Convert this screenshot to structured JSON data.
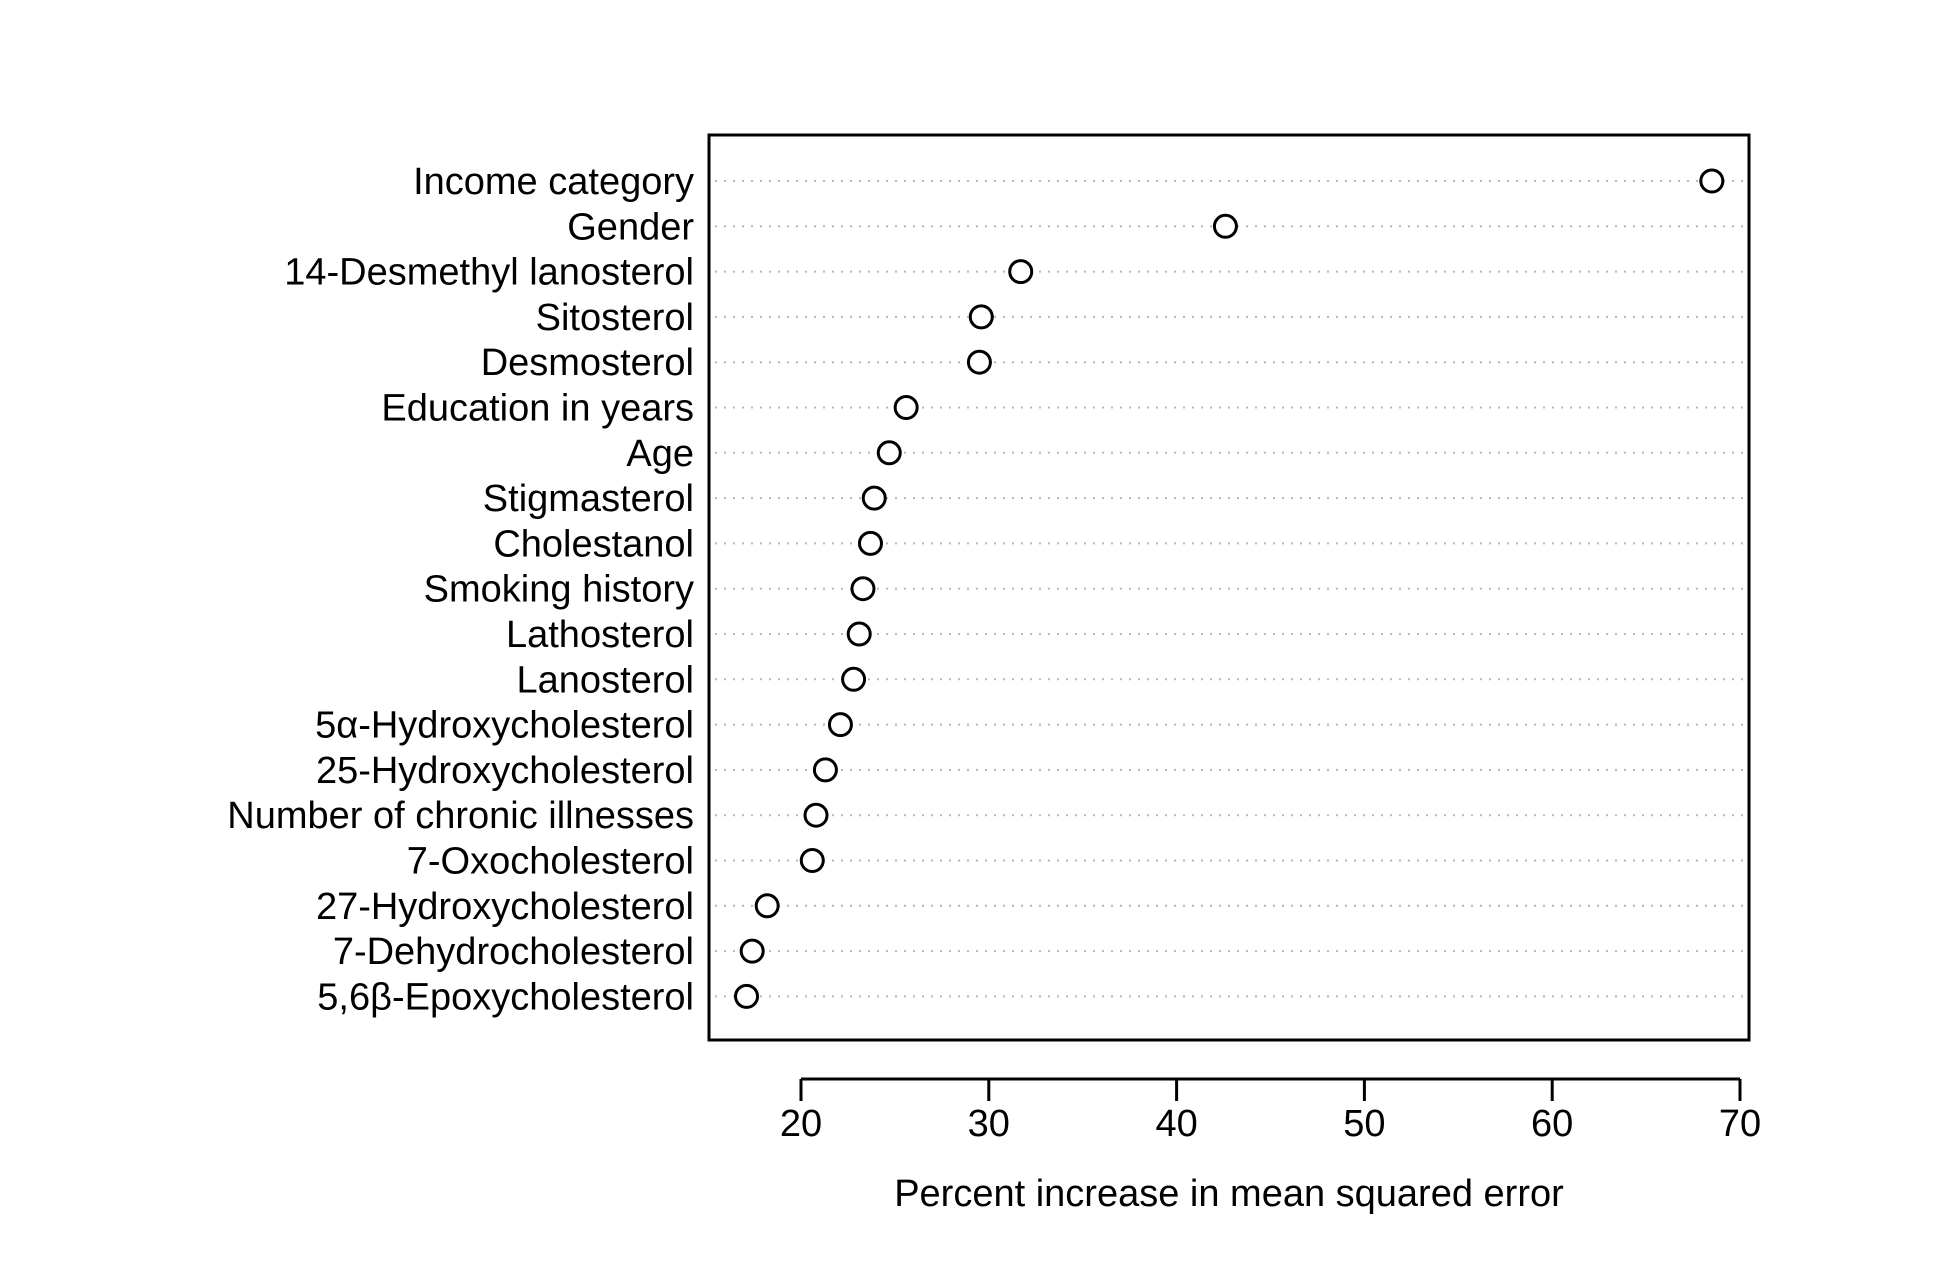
{
  "chart_data": {
    "type": "scatter",
    "subtype": "dot-plot",
    "title": "",
    "xlabel": "Percent increase in mean squared error",
    "ylabel": "",
    "xlim": [
      15,
      70.5
    ],
    "xticks": [
      20,
      30,
      40,
      50,
      60,
      70
    ],
    "grid": "dotted horizontal lines per category",
    "marker": "open circle",
    "categories": [
      "Income category",
      "Gender",
      "14-Desmethyl lanosterol",
      "Sitosterol",
      "Desmosterol",
      "Education in years",
      "Age",
      "Stigmasterol",
      "Cholestanol",
      "Smoking history",
      "Lathosterol",
      "Lanosterol",
      "5α-Hydroxycholesterol",
      "25-Hydroxycholesterol",
      "Number of chronic illnesses",
      "7-Oxocholesterol",
      "27-Hydroxycholesterol",
      "7-Dehydrocholesterol",
      "5,6β-Epoxycholesterol"
    ],
    "values": [
      68.5,
      42.6,
      31.7,
      29.6,
      29.5,
      25.6,
      24.7,
      23.9,
      23.7,
      23.3,
      23.1,
      22.8,
      22.1,
      21.3,
      20.8,
      20.6,
      18.2,
      17.4,
      17.1
    ]
  }
}
